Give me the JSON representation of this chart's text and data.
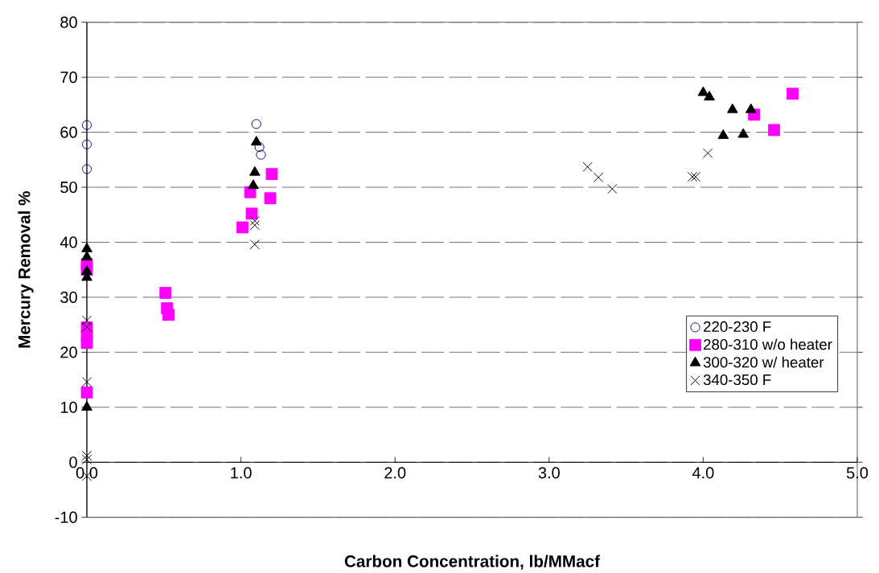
{
  "chart_data": {
    "type": "scatter",
    "xlabel": "Carbon Concentration, lb/MMacf",
    "ylabel": "Mercury Removal %",
    "xlim": [
      0,
      5
    ],
    "ylim": [
      -10,
      80
    ],
    "xticks": [
      {
        "value": 0,
        "label": "0.0"
      },
      {
        "value": 1,
        "label": "1.0"
      },
      {
        "value": 2,
        "label": "2.0"
      },
      {
        "value": 3,
        "label": "3.0"
      },
      {
        "value": 4,
        "label": "4.0"
      },
      {
        "value": 5,
        "label": "5.0"
      }
    ],
    "yticks": [
      -10,
      0,
      10,
      20,
      30,
      40,
      50,
      60,
      70,
      80
    ],
    "grid": "y",
    "legend": "right",
    "series": [
      {
        "name": "220-230 F",
        "color": "#000080",
        "marker": "circle",
        "x": [
          0,
          0,
          0,
          1.1,
          1.12,
          1.13
        ],
        "values": [
          61.3,
          57.8,
          53.3,
          61.5,
          57.3,
          55.9
        ]
      },
      {
        "name": "280-310 w/o heater",
        "color": "#ff00ff",
        "marker": "square",
        "x": [
          0,
          0,
          0,
          0,
          0,
          0,
          0.51,
          0.52,
          0.53,
          1.2,
          1.06,
          1.19,
          1.07,
          1.01,
          4.33,
          4.46,
          4.58
        ],
        "values": [
          36,
          35,
          24.5,
          23,
          21.7,
          12.7,
          30.8,
          28,
          26.8,
          52.4,
          49.1,
          48,
          45.2,
          42.7,
          63.2,
          60.4,
          67
        ]
      },
      {
        "name": "300-320 w/ heater",
        "color": "#000000",
        "marker": "triangle",
        "x": [
          0,
          0,
          0,
          0,
          0,
          1.1,
          1.09,
          1.08,
          4,
          4.04,
          4.19,
          4.31,
          4.13,
          4.26
        ],
        "values": [
          38.8,
          37.3,
          34.7,
          33.6,
          10,
          58.2,
          52.7,
          50.3,
          67.2,
          66.4,
          64.1,
          64.1,
          59.4,
          59.6
        ]
      },
      {
        "name": "340-350 F",
        "color": "#000000",
        "marker": "cross",
        "x": [
          0,
          0,
          0,
          0,
          0,
          0,
          1.09,
          1.09,
          1.09,
          3.25,
          3.32,
          3.41,
          3.93,
          3.95,
          4.03
        ],
        "values": [
          25.8,
          24.6,
          14.6,
          1.2,
          0.5,
          -2.5,
          43.9,
          43.1,
          39.6,
          53.7,
          51.8,
          49.7,
          51.9,
          51.9,
          56.2
        ]
      }
    ]
  }
}
